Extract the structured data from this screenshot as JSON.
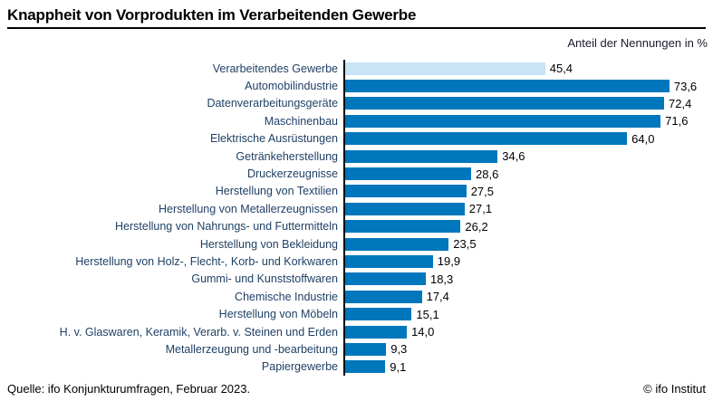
{
  "header": {
    "title": "Knappheit von Vorprodukten im Verarbeitenden Gewerbe",
    "unit_label": "Anteil der Nennungen in %"
  },
  "footer": {
    "source": "Quelle: ifo Konjunkturumfragen, Februar 2023.",
    "copyright": "© ifo Institut"
  },
  "colors": {
    "bar": "#0076bc",
    "highlight_bar": "#c9e3f7",
    "category_label_text": "#1f4065",
    "axis_line": "#000000"
  },
  "chart_data": {
    "type": "bar",
    "orientation": "horizontal",
    "title": "Knappheit von Vorprodukten im Verarbeitenden Gewerbe",
    "xlabel": "Anteil der Nennungen in %",
    "ylabel": "",
    "xlim": [
      0,
      83.5
    ],
    "grid": false,
    "legend": false,
    "highlight_index": 0,
    "categories": [
      "Verarbeitendes Gewerbe",
      "Automobilindustrie",
      "Datenverarbeitungsgeräte",
      "Maschinenbau",
      "Elektrische Ausrüstungen",
      "Getränkeherstellung",
      "Druckerzeugnisse",
      "Herstellung von Textilien",
      "Herstellung von Metallerzeugnissen",
      "Herstellung von Nahrungs- und Futtermitteln",
      "Herstellung von Bekleidung",
      "Herstellung von Holz-, Flecht-, Korb- und Korkwaren",
      "Gummi- und Kunststoffwaren",
      "Chemische Industrie",
      "Herstellung von Möbeln",
      "H. v. Glaswaren, Keramik, Verarb. v. Steinen und Erden",
      "Metallerzeugung und -bearbeitung",
      "Papiergewerbe"
    ],
    "values": [
      45.4,
      73.6,
      72.4,
      71.6,
      64.0,
      34.6,
      28.6,
      27.5,
      27.1,
      26.2,
      23.5,
      19.9,
      18.3,
      17.4,
      15.1,
      14.0,
      9.3,
      9.1
    ],
    "value_labels": [
      "45,4",
      "73,6",
      "72,4",
      "71,6",
      "64,0",
      "34,6",
      "28,6",
      "27,5",
      "27,1",
      "26,2",
      "23,5",
      "19,9",
      "18,3",
      "17,4",
      "15,1",
      "14,0",
      "9,3",
      "9,1"
    ]
  }
}
